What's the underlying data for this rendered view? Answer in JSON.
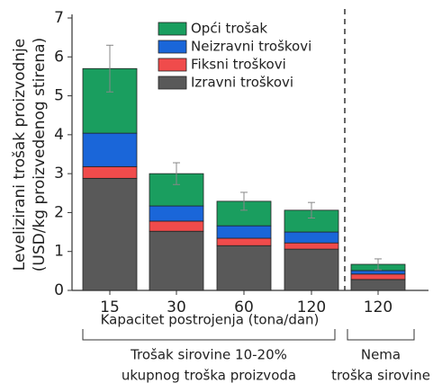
{
  "chart_data": {
    "type": "stacked_bar",
    "ylabel": [
      "Levelizirani trošak proizvodnje",
      "(USD/kg proizvedenog stirena)"
    ],
    "xlabel": "Kapacitet postrojenja (tona/dan)",
    "categories": [
      "15",
      "30",
      "60",
      "120",
      "120"
    ],
    "groups": [
      [
        "Trošak sirovine 10-20%",
        "ukupnog troška proizvoda"
      ],
      [
        "Nema",
        "troška sirovine"
      ]
    ],
    "series": [
      {
        "name": "Izravni troškovi",
        "color": "#595959",
        "values": [
          2.88,
          1.52,
          1.15,
          1.06,
          0.28
        ]
      },
      {
        "name": "Fiksni troškovi",
        "color": "#f04b4b",
        "values": [
          0.3,
          0.26,
          0.19,
          0.16,
          0.14
        ]
      },
      {
        "name": "Neizravni troškovi",
        "color": "#1a66d9",
        "values": [
          0.86,
          0.39,
          0.32,
          0.28,
          0.09
        ]
      },
      {
        "name": "Opći trošak",
        "color": "#1a9e5f",
        "values": [
          1.66,
          0.83,
          0.63,
          0.56,
          0.16
        ]
      }
    ],
    "errors": [
      0.6,
      0.28,
      0.23,
      0.2,
      0.14
    ],
    "ylim": [
      0,
      7
    ],
    "yticks": [
      0,
      1,
      2,
      3,
      4,
      5,
      6,
      7
    ]
  }
}
